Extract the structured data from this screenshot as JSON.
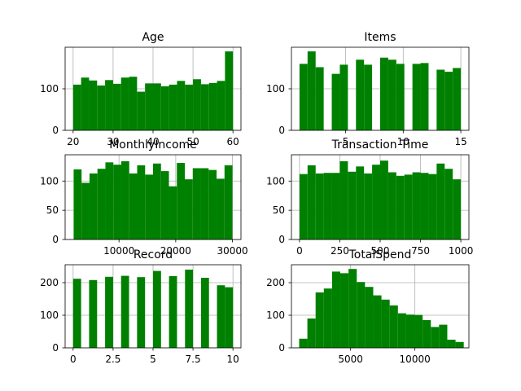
{
  "chart_data": [
    {
      "type": "bar",
      "title": "Age",
      "xlim": [
        18,
        62
      ],
      "ylim": [
        0,
        200
      ],
      "xticks": [
        20,
        30,
        40,
        50,
        60
      ],
      "yticks": [
        0,
        100
      ],
      "grid": true,
      "bin_edges": [
        20,
        22,
        24,
        26,
        28,
        30,
        32,
        34,
        36,
        38,
        40,
        42,
        44,
        46,
        48,
        50,
        52,
        54,
        56,
        58,
        60
      ],
      "values": [
        110,
        127,
        120,
        108,
        121,
        112,
        127,
        129,
        93,
        113,
        113,
        106,
        110,
        119,
        110,
        123,
        111,
        114,
        119,
        190
      ]
    },
    {
      "type": "bar",
      "title": "Items",
      "xlim": [
        0.3,
        15.7
      ],
      "ylim": [
        0,
        200
      ],
      "xticks": [
        5,
        10,
        15
      ],
      "yticks": [
        0,
        100
      ],
      "grid": true,
      "bin_edges": [
        1,
        1.7,
        2.4,
        3.1,
        3.8,
        4.5,
        5.2,
        5.9,
        6.6,
        7.3,
        8.0,
        8.7,
        9.4,
        10.1,
        10.8,
        11.5,
        12.2,
        12.9,
        13.6,
        14.3,
        15.0
      ],
      "values": [
        160,
        190,
        152,
        0,
        136,
        158,
        0,
        170,
        158,
        0,
        175,
        170,
        160,
        0,
        160,
        162,
        0,
        146,
        141,
        150
      ]
    },
    {
      "type": "bar",
      "title": "MonthlyIncome",
      "xlim": [
        500,
        31500
      ],
      "ylim": [
        0,
        145
      ],
      "xticks": [
        10000,
        20000,
        30000
      ],
      "yticks": [
        0,
        50,
        100
      ],
      "grid": true,
      "bin_edges": [
        2000,
        3400,
        4800,
        6200,
        7600,
        9000,
        10400,
        11800,
        13200,
        14600,
        16000,
        17400,
        18800,
        20200,
        21600,
        23000,
        24400,
        25800,
        27200,
        28600,
        30000
      ],
      "values": [
        120,
        97,
        113,
        121,
        132,
        128,
        134,
        113,
        127,
        111,
        130,
        117,
        91,
        131,
        103,
        122,
        122,
        119,
        104,
        127
      ]
    },
    {
      "type": "bar",
      "title": "Transaction Time",
      "xlim": [
        -50,
        1050
      ],
      "ylim": [
        0,
        145
      ],
      "xticks": [
        0,
        250,
        500,
        750,
        1000
      ],
      "yticks": [
        0,
        50,
        100
      ],
      "grid": true,
      "bin_edges": [
        0,
        50,
        100,
        150,
        200,
        250,
        300,
        350,
        400,
        450,
        500,
        550,
        600,
        650,
        700,
        750,
        800,
        850,
        900,
        950,
        1000
      ],
      "values": [
        112,
        127,
        113,
        114,
        114,
        134,
        116,
        125,
        113,
        128,
        135,
        115,
        109,
        111,
        115,
        114,
        112,
        130,
        121,
        103
      ]
    },
    {
      "type": "bar",
      "title": "Record",
      "xlim": [
        -0.5,
        10.5
      ],
      "ylim": [
        0,
        255
      ],
      "xticks": [
        0.0,
        2.5,
        5.0,
        7.5,
        10.0
      ],
      "yticks": [
        0,
        100,
        200
      ],
      "grid": true,
      "bin_edges": [
        0,
        0.5,
        1.0,
        1.5,
        2.0,
        2.5,
        3.0,
        3.5,
        4.0,
        4.5,
        5.0,
        5.5,
        6.0,
        6.5,
        7.0,
        7.5,
        8.0,
        8.5,
        9.0,
        9.5,
        10.0
      ],
      "values": [
        212,
        0,
        208,
        0,
        218,
        0,
        221,
        0,
        217,
        0,
        236,
        0,
        220,
        0,
        240,
        0,
        215,
        0,
        192,
        186
      ]
    },
    {
      "type": "bar",
      "title": "TotalSpend",
      "xlim": [
        400,
        14200
      ],
      "ylim": [
        0,
        255
      ],
      "xticks": [
        5000,
        10000
      ],
      "yticks": [
        0,
        100,
        200
      ],
      "grid": true,
      "bin_edges": [
        1000,
        1640,
        2280,
        2920,
        3560,
        4200,
        4840,
        5480,
        6120,
        6760,
        7400,
        8040,
        8680,
        9320,
        9960,
        10600,
        11240,
        11880,
        12520,
        13160,
        13800
      ],
      "values": [
        28,
        90,
        170,
        182,
        234,
        229,
        242,
        202,
        187,
        161,
        148,
        130,
        106,
        102,
        101,
        85,
        64,
        71,
        25,
        18
      ]
    }
  ],
  "style": {
    "bar_color": "#008000",
    "grid_color": "#b0b0b0",
    "axis_color": "#000000"
  }
}
